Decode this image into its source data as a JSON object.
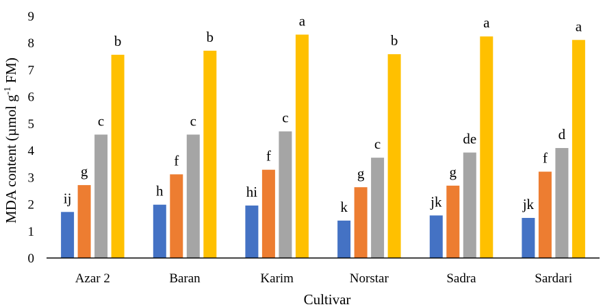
{
  "chart_data": {
    "type": "bar",
    "categories": [
      "Azar 2",
      "Baran",
      "Karim",
      "Norstar",
      "Sadra",
      "Sardari"
    ],
    "xlabel": "Cultivar",
    "ylabel": "MDA content (µmol g-1 FM)",
    "ylabel_parts": {
      "before": "MDA content (µmol g",
      "sup": "-1",
      "after": " FM)"
    },
    "ylim": [
      0,
      9
    ],
    "yticks": [
      "0",
      "1",
      "2",
      "3",
      "4",
      "5",
      "6",
      "7",
      "8",
      "9"
    ],
    "grid": false,
    "legend": "none",
    "series": [
      {
        "color": "#4472C4",
        "values": [
          1.7,
          1.97,
          1.94,
          1.38,
          1.57,
          1.48
        ],
        "letters": [
          "ij",
          "h",
          "hi",
          "k",
          "jk",
          "jk"
        ]
      },
      {
        "color": "#ED7D31",
        "values": [
          2.7,
          3.1,
          3.27,
          2.62,
          2.68,
          3.2
        ],
        "letters": [
          "g",
          "f",
          "f",
          "g",
          "g",
          "f"
        ]
      },
      {
        "color": "#A5A5A5",
        "values": [
          4.58,
          4.58,
          4.7,
          3.72,
          3.91,
          4.08
        ],
        "letters": [
          "c",
          "c",
          "c",
          "c",
          "de",
          "d"
        ]
      },
      {
        "color": "#FFC000",
        "values": [
          7.55,
          7.7,
          8.3,
          7.57,
          8.23,
          8.1
        ],
        "letters": [
          "b",
          "b",
          "a",
          "b",
          "a",
          "a"
        ]
      }
    ]
  }
}
